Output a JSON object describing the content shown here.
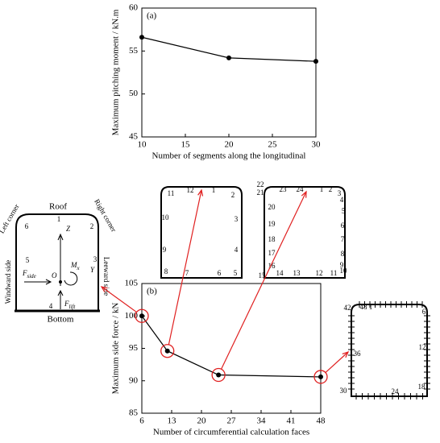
{
  "chart_data": [
    {
      "type": "line",
      "label": "(a)",
      "x_label": "Number of segments along the longitudinal",
      "y_label": "Maximum pitching moment / kN.m",
      "x": [
        10,
        20,
        30
      ],
      "values": [
        56.6,
        54.2,
        53.8
      ],
      "color": "#000000",
      "xlim": [
        10,
        30
      ],
      "xticks": [
        10,
        15,
        20,
        25,
        30
      ],
      "ylim": [
        45,
        60
      ],
      "yticks": [
        45,
        50,
        55,
        60
      ]
    },
    {
      "type": "line",
      "label": "(b)",
      "x_label": "Number of  circumferential calculation faces",
      "y_label": "Maximum side force / kN",
      "x": [
        6,
        12,
        24,
        48
      ],
      "values": [
        100,
        94.6,
        90.9,
        90.6
      ],
      "color": "#000000",
      "xlim": [
        6,
        48
      ],
      "xticks": [
        6,
        13,
        20,
        27,
        34,
        41,
        48
      ],
      "ylim": [
        85,
        105
      ],
      "yticks": [
        85,
        90,
        95,
        100,
        105
      ]
    }
  ],
  "section": {
    "roof": "Roof",
    "left_corner": "Left corner",
    "right_corner": "Right corner",
    "windward": "Windward side",
    "leeward": "Leeward side",
    "bottom": "Bottom",
    "numbers": [
      "1",
      "2",
      "3",
      "4",
      "5",
      "6"
    ],
    "z": "Z",
    "y": "Y",
    "o": "O",
    "moment": {
      "main": "M",
      "sub": "x"
    },
    "side_force": {
      "main": "F",
      "sub": "side"
    },
    "lift_force": {
      "main": "F",
      "sub": "lift"
    }
  },
  "outlines": [
    {
      "labels": [
        "1",
        "2",
        "3",
        "4",
        "5",
        "6",
        "7",
        "8",
        "9",
        "10",
        "11",
        "12"
      ]
    },
    {
      "labels": [
        "1",
        "2",
        "3",
        "4",
        "5",
        "6",
        "7",
        "8",
        "9",
        "10",
        "11",
        "12",
        "13",
        "14",
        "15",
        "16",
        "17",
        "18",
        "19",
        "20",
        "21",
        "22",
        "23",
        "24"
      ]
    },
    {
      "labels": [
        "1",
        "6",
        "12",
        "18",
        "24",
        "30",
        "36",
        "42",
        "48"
      ]
    }
  ]
}
